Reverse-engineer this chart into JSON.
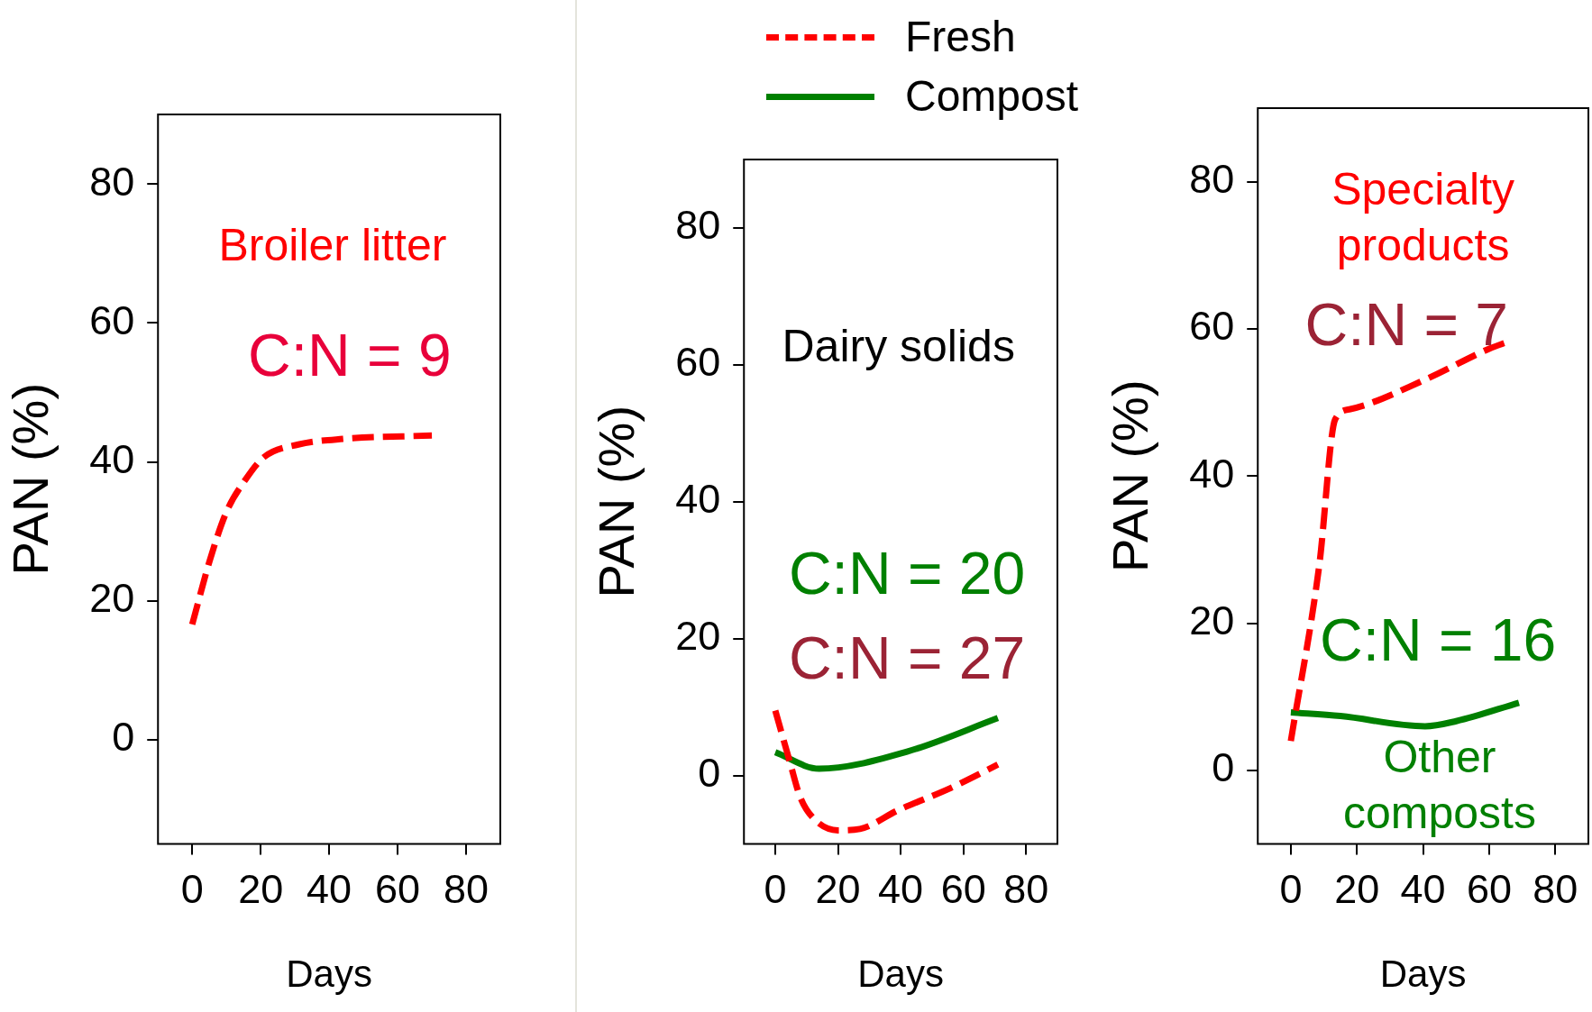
{
  "chart_data": [
    {
      "type": "line",
      "xlabel": "Days",
      "ylabel": "PAN (%)",
      "xlim": [
        -10,
        90
      ],
      "ylim": [
        -15,
        90
      ],
      "xticks": [
        0,
        20,
        40,
        60,
        80
      ],
      "yticks": [
        0,
        20,
        40,
        60,
        80
      ],
      "grid": false,
      "legend": false,
      "marker": "none",
      "series": [
        {
          "color": "#ff0000",
          "line_style": "dashed",
          "x": [
            0,
            5,
            10,
            15.5,
            21,
            31,
            44,
            70
          ],
          "values": [
            16.6,
            25.6,
            32.8,
            37.4,
            40.7,
            42.5,
            43.3,
            43.8
          ]
        }
      ],
      "annotations": [
        "Broiler litter",
        "C:N = 9"
      ]
    },
    {
      "type": "line",
      "xlabel": "Days",
      "ylabel": "PAN (%)",
      "xlim": [
        -10,
        90
      ],
      "ylim": [
        -10,
        90
      ],
      "xticks": [
        0,
        20,
        40,
        60,
        80
      ],
      "yticks": [
        0,
        20,
        40,
        60,
        80
      ],
      "grid": false,
      "legend": "top",
      "marker": "none",
      "series": [
        {
          "name": "Fresh",
          "color": "#ff0000",
          "line_style": "dashed",
          "x": [
            0,
            4.7,
            8,
            13,
            20,
            27,
            39,
            56,
            71
          ],
          "values": [
            9.5,
            1.9,
            -3.2,
            -6.6,
            -8,
            -7.8,
            -5.1,
            -1.8,
            1.6
          ]
        },
        {
          "name": "Compost",
          "color": "#008000",
          "line_style": "solid",
          "x": [
            0,
            14,
            42,
            71
          ],
          "values": [
            3.4,
            1.0,
            3.5,
            8.4
          ]
        }
      ],
      "annotations": [
        "Dairy solids",
        "C:N = 20",
        "C:N = 27"
      ]
    },
    {
      "type": "line",
      "xlabel": "Days",
      "ylabel": "PAN (%)",
      "xlim": [
        -10,
        90
      ],
      "ylim": [
        -10,
        90
      ],
      "xticks": [
        0,
        20,
        40,
        60,
        80
      ],
      "yticks": [
        0,
        20,
        40,
        60,
        80
      ],
      "grid": false,
      "legend": false,
      "marker": "none",
      "series": [
        {
          "color": "#ff0000",
          "line_style": "dashed",
          "x": [
            0,
            8.6,
            13.4,
            18,
            40.6,
            60,
            66
          ],
          "values": [
            4.0,
            27.9,
            47.7,
            49.1,
            53.1,
            57.3,
            58.3
          ]
        },
        {
          "color": "#008000",
          "line_style": "solid",
          "x": [
            0,
            15,
            40.6,
            50,
            69
          ],
          "values": [
            7.9,
            7.4,
            6.0,
            6.7,
            9.2
          ]
        }
      ],
      "annotations": [
        "Specialty products",
        "C:N = 7",
        "C:N = 16",
        "Other composts"
      ]
    }
  ]
}
